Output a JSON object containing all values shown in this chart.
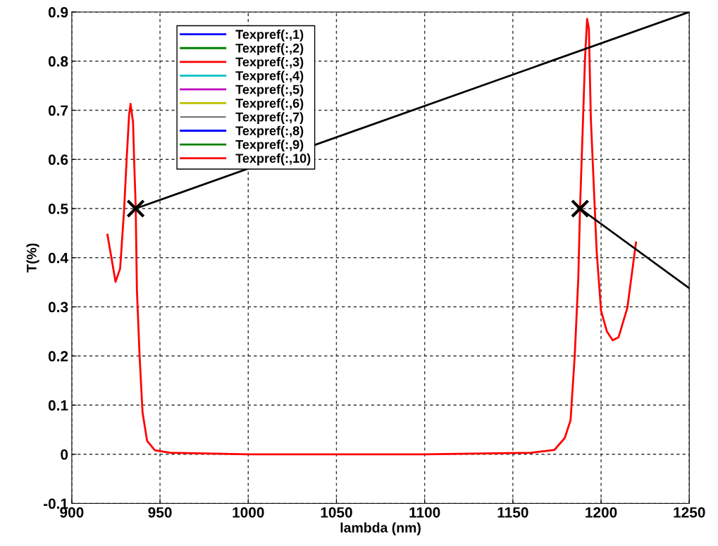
{
  "chart_data": {
    "type": "line",
    "xlabel": "lambda (nm)",
    "ylabel": "T(%)",
    "xlim": [
      900,
      1250
    ],
    "xticks": [
      900,
      950,
      1000,
      1050,
      1100,
      1150,
      1200,
      1250
    ],
    "ylim": [
      -0.1,
      0.9
    ],
    "yticks": [
      -0.1,
      0,
      0.1,
      0.2,
      0.3,
      0.4,
      0.5,
      0.6,
      0.7,
      0.8,
      0.9
    ],
    "grid": true,
    "legend": "top left",
    "line_style": "solid",
    "x": [
      920.2,
      924.8,
      927.4,
      929.6,
      931.1,
      932.5,
      933.3,
      934.7,
      935.4,
      936.2,
      936.9,
      938.4,
      940.1,
      942.7,
      947.1,
      955.8,
      1000,
      1100,
      1160.4,
      1173.6,
      1179.4,
      1182.7,
      1185.1,
      1187.1,
      1188.1,
      1189.8,
      1190.9,
      1192.1,
      1193.1,
      1194.2,
      1196.4,
      1197.5,
      1200,
      1203.3,
      1206.6,
      1209.9,
      1214.9,
      1219.8
    ],
    "series": [
      {
        "name": "Texpref(:,1)",
        "color": "#0000ff",
        "values": [
          null,
          null,
          null,
          null,
          null,
          null,
          null,
          null,
          null,
          null,
          null,
          null,
          null,
          null,
          null,
          null,
          null,
          null,
          null,
          null,
          null,
          null,
          null,
          null,
          null,
          null,
          null,
          null,
          null,
          null,
          null,
          null,
          null,
          null,
          null,
          null,
          null,
          null
        ]
      },
      {
        "name": "Texpref(:,2)",
        "color": "#008000",
        "values": [
          null,
          null,
          null,
          null,
          null,
          null,
          null,
          null,
          null,
          null,
          null,
          null,
          null,
          null,
          null,
          null,
          null,
          null,
          null,
          null,
          null,
          null,
          null,
          null,
          null,
          null,
          null,
          null,
          null,
          null,
          null,
          null,
          null,
          null,
          null,
          null,
          null,
          null
        ]
      },
      {
        "name": "Texpref(:,3)",
        "color": "#ff0000",
        "values": [
          null,
          null,
          null,
          null,
          null,
          null,
          null,
          null,
          null,
          null,
          null,
          null,
          null,
          null,
          null,
          null,
          null,
          null,
          null,
          null,
          null,
          null,
          null,
          null,
          null,
          null,
          null,
          null,
          null,
          null,
          null,
          null,
          null,
          null,
          null,
          null,
          null,
          null
        ]
      },
      {
        "name": "Texpref(:,4)",
        "color": "#00bfbf",
        "values": [
          null,
          null,
          null,
          null,
          null,
          null,
          null,
          null,
          null,
          null,
          null,
          null,
          null,
          null,
          null,
          null,
          null,
          null,
          null,
          null,
          null,
          null,
          null,
          null,
          null,
          null,
          null,
          null,
          null,
          null,
          null,
          null,
          null,
          null,
          null,
          null,
          null,
          null
        ]
      },
      {
        "name": "Texpref(:,5)",
        "color": "#bf00bf",
        "values": [
          null,
          null,
          null,
          null,
          null,
          null,
          null,
          null,
          null,
          null,
          null,
          null,
          null,
          null,
          null,
          null,
          null,
          null,
          null,
          null,
          null,
          null,
          null,
          null,
          null,
          null,
          null,
          null,
          null,
          null,
          null,
          null,
          null,
          null,
          null,
          null,
          null,
          null
        ]
      },
      {
        "name": "Texpref(:,6)",
        "color": "#bfbf00",
        "values": [
          null,
          null,
          null,
          null,
          null,
          null,
          null,
          null,
          null,
          null,
          null,
          null,
          null,
          null,
          null,
          null,
          null,
          null,
          null,
          null,
          null,
          null,
          null,
          null,
          null,
          null,
          null,
          null,
          null,
          null,
          null,
          null,
          null,
          null,
          null,
          null,
          null,
          null
        ]
      },
      {
        "name": "Texpref(:,7)",
        "color": "#404040",
        "values": [
          null,
          null,
          null,
          null,
          null,
          null,
          null,
          null,
          null,
          null,
          null,
          null,
          null,
          null,
          null,
          null,
          null,
          null,
          null,
          null,
          null,
          null,
          null,
          null,
          null,
          null,
          null,
          null,
          null,
          null,
          null,
          null,
          null,
          null,
          null,
          null,
          null,
          null
        ]
      },
      {
        "name": "Texpref(:,8)",
        "color": "#0000ff",
        "values": [
          null,
          null,
          null,
          null,
          null,
          null,
          null,
          null,
          null,
          null,
          null,
          null,
          null,
          null,
          null,
          null,
          null,
          null,
          null,
          null,
          null,
          null,
          null,
          null,
          null,
          null,
          null,
          null,
          null,
          null,
          null,
          null,
          null,
          null,
          null,
          null,
          null,
          null
        ]
      },
      {
        "name": "Texpref(:,9)",
        "color": "#008000",
        "values": [
          null,
          null,
          null,
          null,
          null,
          null,
          null,
          null,
          null,
          null,
          null,
          null,
          null,
          null,
          null,
          null,
          null,
          null,
          null,
          null,
          null,
          null,
          null,
          null,
          null,
          null,
          null,
          null,
          null,
          null,
          null,
          null,
          null,
          null,
          null,
          null,
          null,
          null
        ]
      },
      {
        "name": "Texpref(:,10)",
        "color": "#ff0000",
        "values": [
          0.447,
          0.351,
          0.378,
          0.495,
          0.601,
          0.692,
          0.713,
          0.676,
          0.591,
          0.506,
          0.335,
          0.202,
          0.085,
          0.027,
          0.008,
          0.003,
          0,
          0,
          0.003,
          0.009,
          0.033,
          0.069,
          0.202,
          0.359,
          0.503,
          0.684,
          0.805,
          0.886,
          0.865,
          0.684,
          0.503,
          0.413,
          0.292,
          0.25,
          0.232,
          0.238,
          0.298,
          0.431
        ]
      },
      {
        "type": "line",
        "color": "#000000",
        "x": [
          936.2,
          1250
        ],
        "values": [
          0.5,
          0.9
        ]
      },
      {
        "type": "line",
        "color": "#000000",
        "x": [
          1188.1,
          1250
        ],
        "values": [
          0.5,
          0.338
        ]
      },
      {
        "type": "scatter",
        "marker": "cross",
        "color": "#000000",
        "x": [
          936.2,
          1188.1
        ],
        "values": [
          0.5,
          0.5
        ]
      }
    ]
  }
}
